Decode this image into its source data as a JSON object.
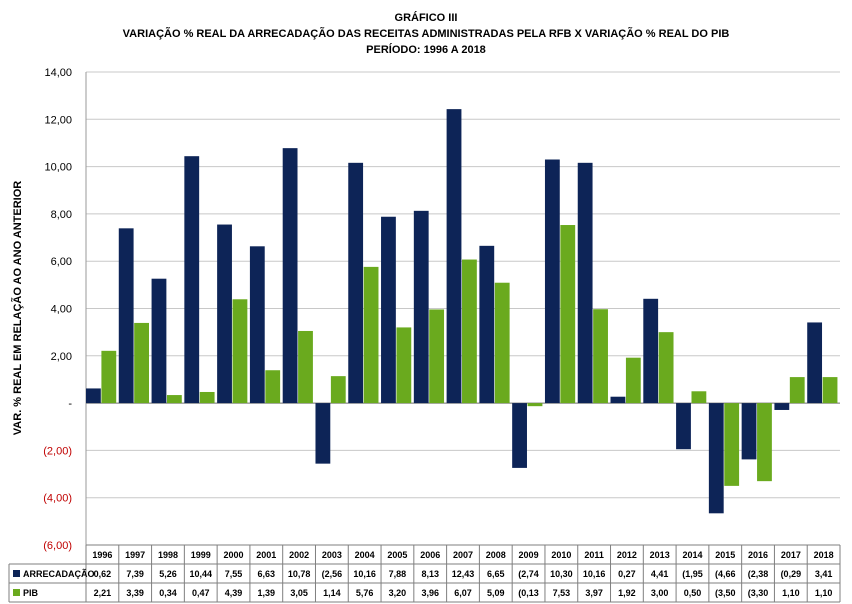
{
  "title": {
    "line1": "GRÁFICO III",
    "line2": "VARIAÇÃO % REAL DA ARRECADAÇÃO DAS RECEITAS ADMINISTRADAS PELA RFB X VARIAÇÃO % REAL DO PIB",
    "line3": "PERÍODO: 1996 A 2018"
  },
  "colors": {
    "arrecadacao": "#0d2457",
    "pib": "#6aaa1e",
    "negative_tick": "#c00000",
    "grid": "#c8c8c8"
  },
  "chart_data": {
    "type": "bar",
    "title": "VARIAÇÃO % REAL DA ARRECADAÇÃO DAS RECEITAS ADMINISTRADAS PELA RFB X VARIAÇÃO % REAL DO PIB",
    "ylabel": "VAR. % REAL EM RELAÇÃO AO ANO ANTERIOR",
    "ylim": [
      -6,
      14
    ],
    "yticks": [
      14,
      12,
      10,
      8,
      6,
      4,
      2,
      0,
      -2,
      -4,
      -6
    ],
    "ytick_labels": [
      "14,00",
      "12,00",
      "10,00",
      "8,00",
      "6,00",
      "4,00",
      "2,00",
      "-",
      "(2,00)",
      "(4,00)",
      "(6,00)"
    ],
    "grid": true,
    "legend": "data-table",
    "categories": [
      "1996",
      "1997",
      "1998",
      "1999",
      "2000",
      "2001",
      "2002",
      "2003",
      "2004",
      "2005",
      "2006",
      "2007",
      "2008",
      "2009",
      "2010",
      "2011",
      "2012",
      "2013",
      "2014",
      "2015",
      "2016",
      "2017",
      "2018"
    ],
    "series": [
      {
        "name": "ARRECADAÇÃO",
        "values": [
          0.62,
          7.39,
          5.26,
          10.44,
          7.55,
          6.63,
          10.78,
          -2.56,
          10.16,
          7.88,
          8.13,
          12.43,
          6.65,
          -2.74,
          10.3,
          10.16,
          0.27,
          4.41,
          -1.95,
          -4.66,
          -2.38,
          -0.29,
          3.41
        ],
        "labels": [
          "0,62",
          "7,39",
          "5,26",
          "10,44",
          "7,55",
          "6,63",
          "10,78",
          "(2,56",
          "10,16",
          "7,88",
          "8,13",
          "12,43",
          "6,65",
          "(2,74",
          "10,30",
          "10,16",
          "0,27",
          "4,41",
          "(1,95",
          "(4,66",
          "(2,38",
          "(0,29",
          "3,41"
        ]
      },
      {
        "name": "PIB",
        "values": [
          2.21,
          3.39,
          0.34,
          0.47,
          4.39,
          1.39,
          3.05,
          1.14,
          5.76,
          3.2,
          3.96,
          6.07,
          5.09,
          -0.13,
          7.53,
          3.97,
          1.92,
          3.0,
          0.5,
          -3.5,
          -3.3,
          1.1,
          1.1
        ],
        "labels": [
          "2,21",
          "3,39",
          "0,34",
          "0,47",
          "4,39",
          "1,39",
          "3,05",
          "1,14",
          "5,76",
          "3,20",
          "3,96",
          "6,07",
          "5,09",
          "(0,13",
          "7,53",
          "3,97",
          "1,92",
          "3,00",
          "0,50",
          "(3,50",
          "(3,30",
          "1,10",
          "1,10"
        ]
      }
    ]
  }
}
